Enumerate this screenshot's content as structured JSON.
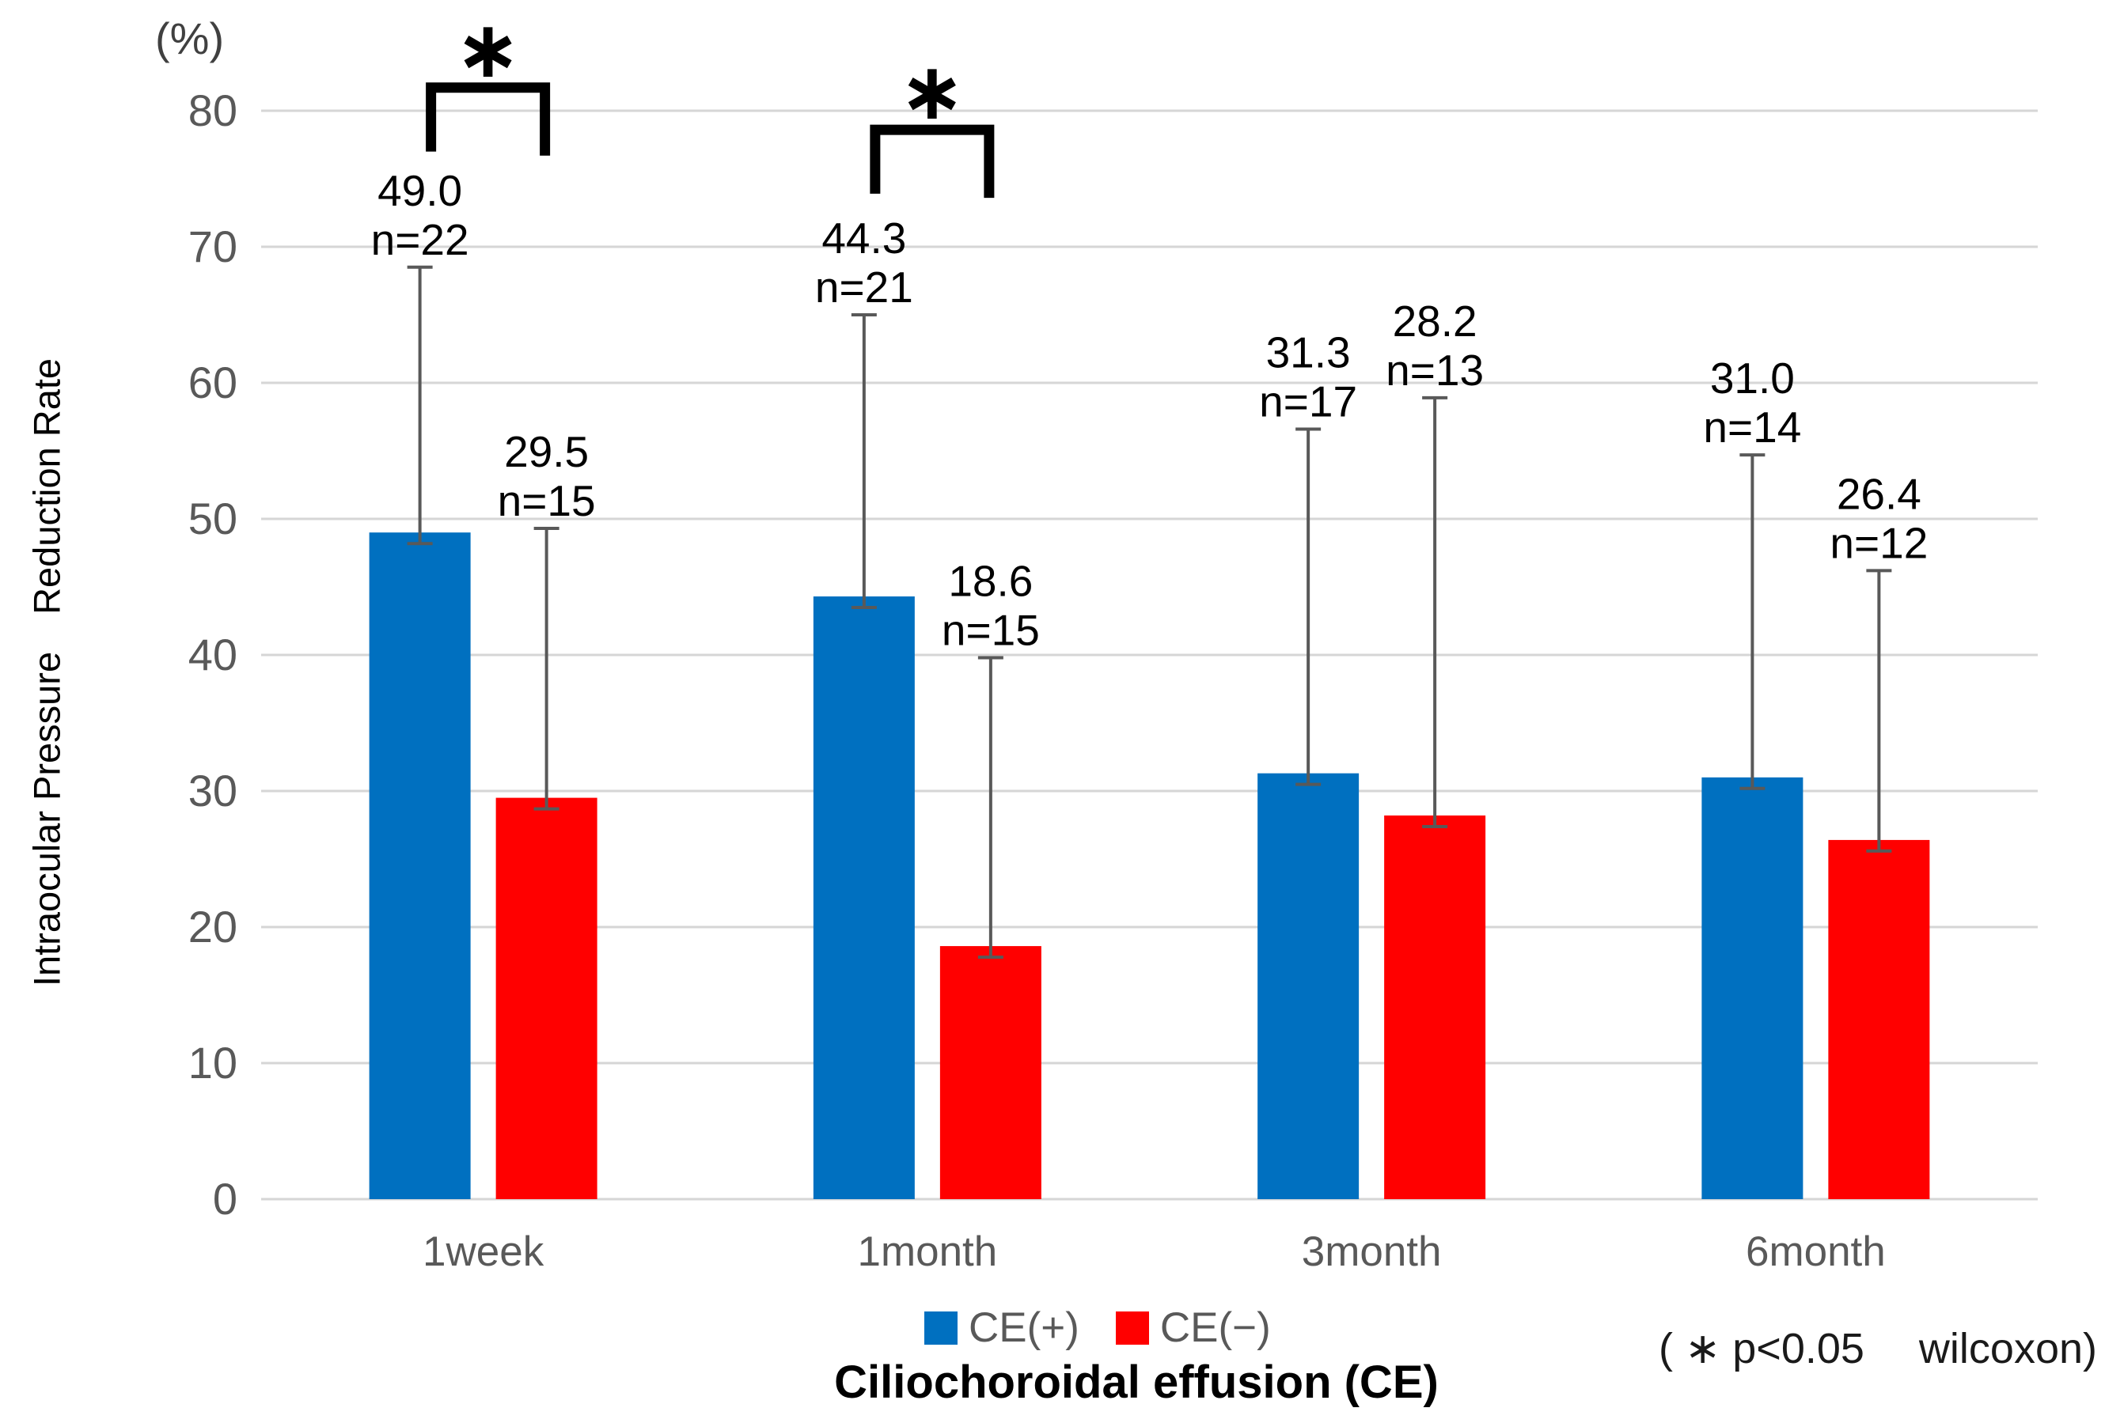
{
  "figure": {
    "percent_label": "(%)",
    "y_axis_title": "Intraocular Pressure　Reduction Rate",
    "x_axis_title": "Ciliochoroidal effusion (CE)",
    "footnote": "( ∗ p<0.05　 wilcoxon)"
  },
  "legend": {
    "items": [
      {
        "key": "ce-plus",
        "label": "CE(+)",
        "color": "#0070C0"
      },
      {
        "key": "ce-minus",
        "label": "CE(−)",
        "color": "#FF0000"
      }
    ]
  },
  "chart_data": {
    "type": "bar",
    "title": "",
    "categories": [
      "1week",
      "1month",
      "3month",
      "6month"
    ],
    "series": [
      {
        "key": "ce-plus",
        "name": "CE(+)",
        "color": "#0070C0",
        "values": [
          49.0,
          44.3,
          31.3,
          31.0
        ],
        "value_labels": [
          "49.0",
          "44.3",
          "31.3",
          "31.0"
        ],
        "n": [
          22,
          21,
          17,
          14
        ],
        "n_labels": [
          "n=22",
          "n=21",
          "n=17",
          "n=14"
        ],
        "error_top": [
          68.5,
          65.0,
          56.6,
          54.7
        ]
      },
      {
        "key": "ce-minus",
        "name": "CE(−)",
        "color": "#FF0000",
        "values": [
          29.5,
          18.6,
          28.2,
          26.4
        ],
        "value_labels": [
          "29.5",
          "18.6",
          "28.2",
          "26.4"
        ],
        "n": [
          15,
          15,
          13,
          12
        ],
        "n_labels": [
          "n=15",
          "n=15",
          "n=13",
          "n=12"
        ],
        "error_top": [
          49.3,
          39.8,
          58.9,
          46.2
        ]
      }
    ],
    "xlabel": "Ciliochoroidal effusion (CE)",
    "ylabel": "Intraocular Pressure Reduction Rate",
    "y_unit": "(%)",
    "ylim": [
      0,
      80
    ],
    "ytick_step": 10,
    "yticks": [
      "0",
      "10",
      "20",
      "30",
      "40",
      "50",
      "60",
      "70",
      "80"
    ],
    "grid": true,
    "legend_position": "bottom",
    "annotations": [
      {
        "category": "1week",
        "label": "∗",
        "y_top": 81.7,
        "y_bottom": 77.0
      },
      {
        "category": "1month",
        "label": "∗",
        "y_top": 78.6,
        "y_bottom": 73.9
      }
    ],
    "footnote": "( ∗ p<0.05  wilcoxon)"
  },
  "style": {
    "gridline_color": "#D6D6D6",
    "tick_text_color": "#595959",
    "data_label_color": "#000000",
    "error_bar_color": "#595959",
    "bracket_color": "#000000"
  }
}
